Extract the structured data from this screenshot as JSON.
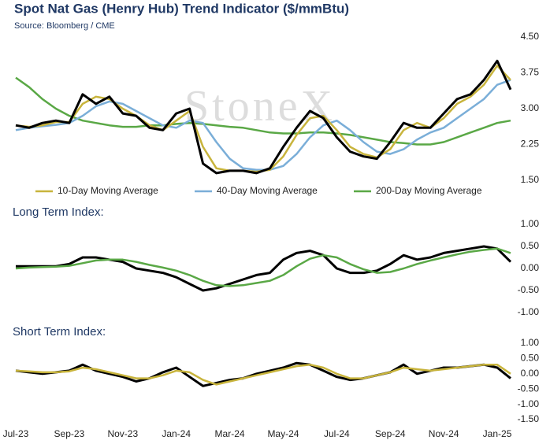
{
  "chart_data": [
    {
      "type": "line",
      "title": "Spot Nat Gas (Henry Hub) Trend Indicator ($/mmBtu)",
      "subtitle": "Source: Bloomberg / CME",
      "watermark": "StoneX",
      "ylim": [
        1.5,
        4.5
      ],
      "yticks": [
        {
          "value": 1.5,
          "label": "1.50"
        },
        {
          "value": 2.25,
          "label": "2.25"
        },
        {
          "value": 3,
          "label": "3.00"
        },
        {
          "value": 3.75,
          "label": "3.75"
        },
        {
          "value": 4.5,
          "label": "4.50"
        }
      ],
      "legend": "bottom",
      "series": [
        {
          "name": "200-Day Moving Average",
          "color": "#5aa846",
          "values": [
            3.65,
            3.45,
            3.2,
            3.0,
            2.85,
            2.75,
            2.7,
            2.65,
            2.62,
            2.62,
            2.65,
            2.65,
            2.68,
            2.7,
            2.68,
            2.65,
            2.62,
            2.6,
            2.55,
            2.5,
            2.48,
            2.48,
            2.5,
            2.5,
            2.48,
            2.45,
            2.4,
            2.35,
            2.3,
            2.28,
            2.25,
            2.25,
            2.3,
            2.4,
            2.5,
            2.6,
            2.7,
            2.75
          ]
        },
        {
          "name": "40-Day Moving Average",
          "color": "#7aaed8",
          "values": [
            2.55,
            2.6,
            2.63,
            2.66,
            2.7,
            2.85,
            3.05,
            3.15,
            3.1,
            2.95,
            2.8,
            2.65,
            2.6,
            2.75,
            2.7,
            2.3,
            1.95,
            1.75,
            1.72,
            1.72,
            1.8,
            2.05,
            2.4,
            2.65,
            2.75,
            2.55,
            2.3,
            2.1,
            2.05,
            2.15,
            2.35,
            2.5,
            2.6,
            2.8,
            3.0,
            3.2,
            3.5,
            3.6
          ]
        },
        {
          "name": "10-Day Moving Average",
          "color": "#c8b43c",
          "values": [
            2.65,
            2.62,
            2.65,
            2.72,
            2.72,
            3.1,
            3.25,
            3.2,
            3.0,
            2.85,
            2.65,
            2.55,
            2.75,
            2.95,
            2.2,
            1.75,
            1.7,
            1.7,
            1.68,
            1.72,
            2.0,
            2.45,
            2.8,
            2.85,
            2.55,
            2.2,
            2.05,
            1.98,
            2.15,
            2.55,
            2.7,
            2.6,
            2.8,
            3.1,
            3.25,
            3.5,
            3.9,
            3.6
          ]
        },
        {
          "color": "#000000",
          "values": [
            2.65,
            2.6,
            2.7,
            2.75,
            2.7,
            3.3,
            3.1,
            3.25,
            2.9,
            2.85,
            2.6,
            2.55,
            2.9,
            3.0,
            1.85,
            1.65,
            1.7,
            1.7,
            1.65,
            1.75,
            2.2,
            2.6,
            2.95,
            2.8,
            2.4,
            2.1,
            2.0,
            1.95,
            2.3,
            2.7,
            2.6,
            2.6,
            2.9,
            3.2,
            3.3,
            3.6,
            4.0,
            3.4
          ]
        }
      ]
    },
    {
      "type": "line",
      "title": "Long Term Index:",
      "ylim": [
        -1,
        1
      ],
      "yticks": [
        {
          "value": -1,
          "label": "-1.00"
        },
        {
          "value": -0.5,
          "label": "-0.50"
        },
        {
          "value": 0,
          "label": "0.00"
        },
        {
          "value": 0.5,
          "label": "0.50"
        },
        {
          "value": 1,
          "label": "1.00"
        }
      ],
      "series": [
        {
          "color": "#000000",
          "values": [
            0.05,
            0.05,
            0.05,
            0.05,
            0.1,
            0.25,
            0.25,
            0.2,
            0.15,
            0.0,
            -0.05,
            -0.1,
            -0.2,
            -0.35,
            -0.5,
            -0.45,
            -0.35,
            -0.25,
            -0.15,
            -0.1,
            0.2,
            0.35,
            0.4,
            0.3,
            0.0,
            -0.1,
            -0.1,
            -0.05,
            0.1,
            0.3,
            0.2,
            0.25,
            0.35,
            0.4,
            0.45,
            0.5,
            0.45,
            0.15
          ]
        },
        {
          "color": "#5aa846",
          "values": [
            0.0,
            0.02,
            0.03,
            0.04,
            0.06,
            0.12,
            0.18,
            0.2,
            0.2,
            0.15,
            0.08,
            0.02,
            -0.05,
            -0.15,
            -0.28,
            -0.38,
            -0.4,
            -0.38,
            -0.33,
            -0.28,
            -0.15,
            0.05,
            0.22,
            0.3,
            0.25,
            0.1,
            -0.02,
            -0.1,
            -0.08,
            0.0,
            0.1,
            0.18,
            0.25,
            0.32,
            0.38,
            0.42,
            0.45,
            0.35
          ]
        }
      ]
    },
    {
      "type": "line",
      "title": "Short Term Index:",
      "ylim": [
        -1.5,
        1
      ],
      "yticks": [
        {
          "value": -1.5,
          "label": "-1.50"
        },
        {
          "value": -1,
          "label": "-1.00"
        },
        {
          "value": -0.5,
          "label": "-0.50"
        },
        {
          "value": 0,
          "label": "0.00"
        },
        {
          "value": 0.5,
          "label": "0.50"
        },
        {
          "value": 1,
          "label": "1.00"
        }
      ],
      "categories": [
        "Jul-23",
        null,
        null,
        null,
        "Sep-23",
        null,
        null,
        null,
        "Nov-23",
        null,
        null,
        null,
        "Jan-24",
        null,
        null,
        null,
        "Mar-24",
        null,
        null,
        null,
        "May-24",
        null,
        null,
        null,
        "Jul-24",
        null,
        null,
        null,
        "Sep-24",
        null,
        null,
        null,
        "Nov-24",
        null,
        null,
        null,
        "Jan-25",
        null
      ],
      "series": [
        {
          "color": "#000000",
          "values": [
            0.1,
            0.05,
            0.0,
            0.05,
            0.1,
            0.3,
            0.1,
            0.0,
            -0.1,
            -0.25,
            -0.15,
            0.05,
            0.2,
            -0.1,
            -0.4,
            -0.3,
            -0.2,
            -0.15,
            0.0,
            0.1,
            0.2,
            0.35,
            0.3,
            0.1,
            -0.1,
            -0.2,
            -0.15,
            -0.05,
            0.05,
            0.3,
            0.0,
            0.1,
            0.2,
            0.2,
            0.25,
            0.3,
            0.2,
            -0.15
          ]
        },
        {
          "color": "#c8b43c",
          "values": [
            0.1,
            0.08,
            0.05,
            0.05,
            0.08,
            0.2,
            0.15,
            0.05,
            -0.05,
            -0.15,
            -0.15,
            -0.05,
            0.1,
            0.05,
            -0.2,
            -0.35,
            -0.25,
            -0.15,
            -0.05,
            0.05,
            0.15,
            0.25,
            0.3,
            0.2,
            0.0,
            -0.15,
            -0.15,
            -0.05,
            0.05,
            0.2,
            0.15,
            0.1,
            0.15,
            0.2,
            0.25,
            0.3,
            0.3,
            0.0
          ]
        }
      ]
    }
  ]
}
